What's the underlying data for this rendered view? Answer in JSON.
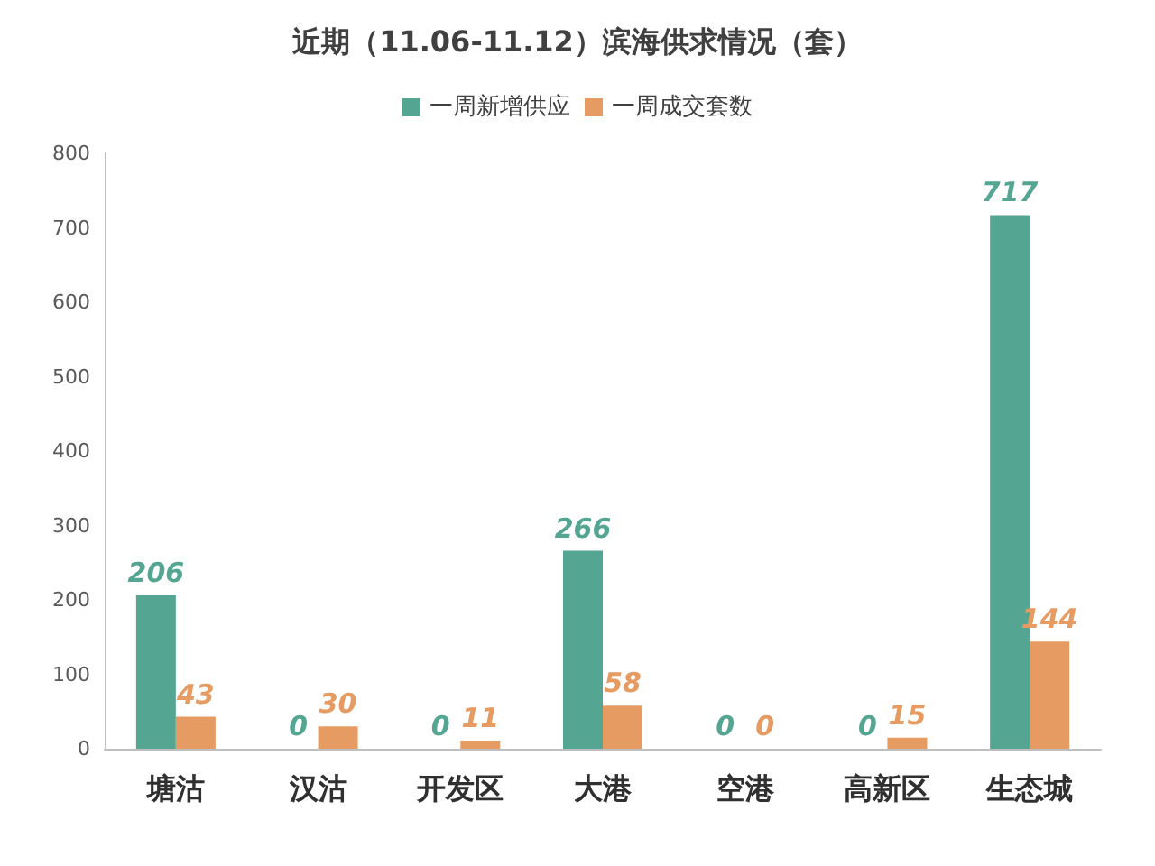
{
  "chart_data": {
    "type": "bar",
    "title": "近期（11.06-11.12）滨海供求情况（套）",
    "categories": [
      "塘沽",
      "汉沽",
      "开发区",
      "大港",
      "空港",
      "高新区",
      "生态城"
    ],
    "series": [
      {
        "name": "一周新增供应",
        "color": "#55a593",
        "values": [
          206,
          0,
          0,
          266,
          0,
          0,
          717
        ]
      },
      {
        "name": "一周成交套数",
        "color": "#e59b62",
        "values": [
          43,
          30,
          11,
          58,
          0,
          15,
          144
        ]
      }
    ],
    "ylim": [
      0,
      800
    ],
    "yticks": [
      0,
      100,
      200,
      300,
      400,
      500,
      600,
      700,
      800
    ],
    "grid": false,
    "legend": "top",
    "data_labels": true
  }
}
